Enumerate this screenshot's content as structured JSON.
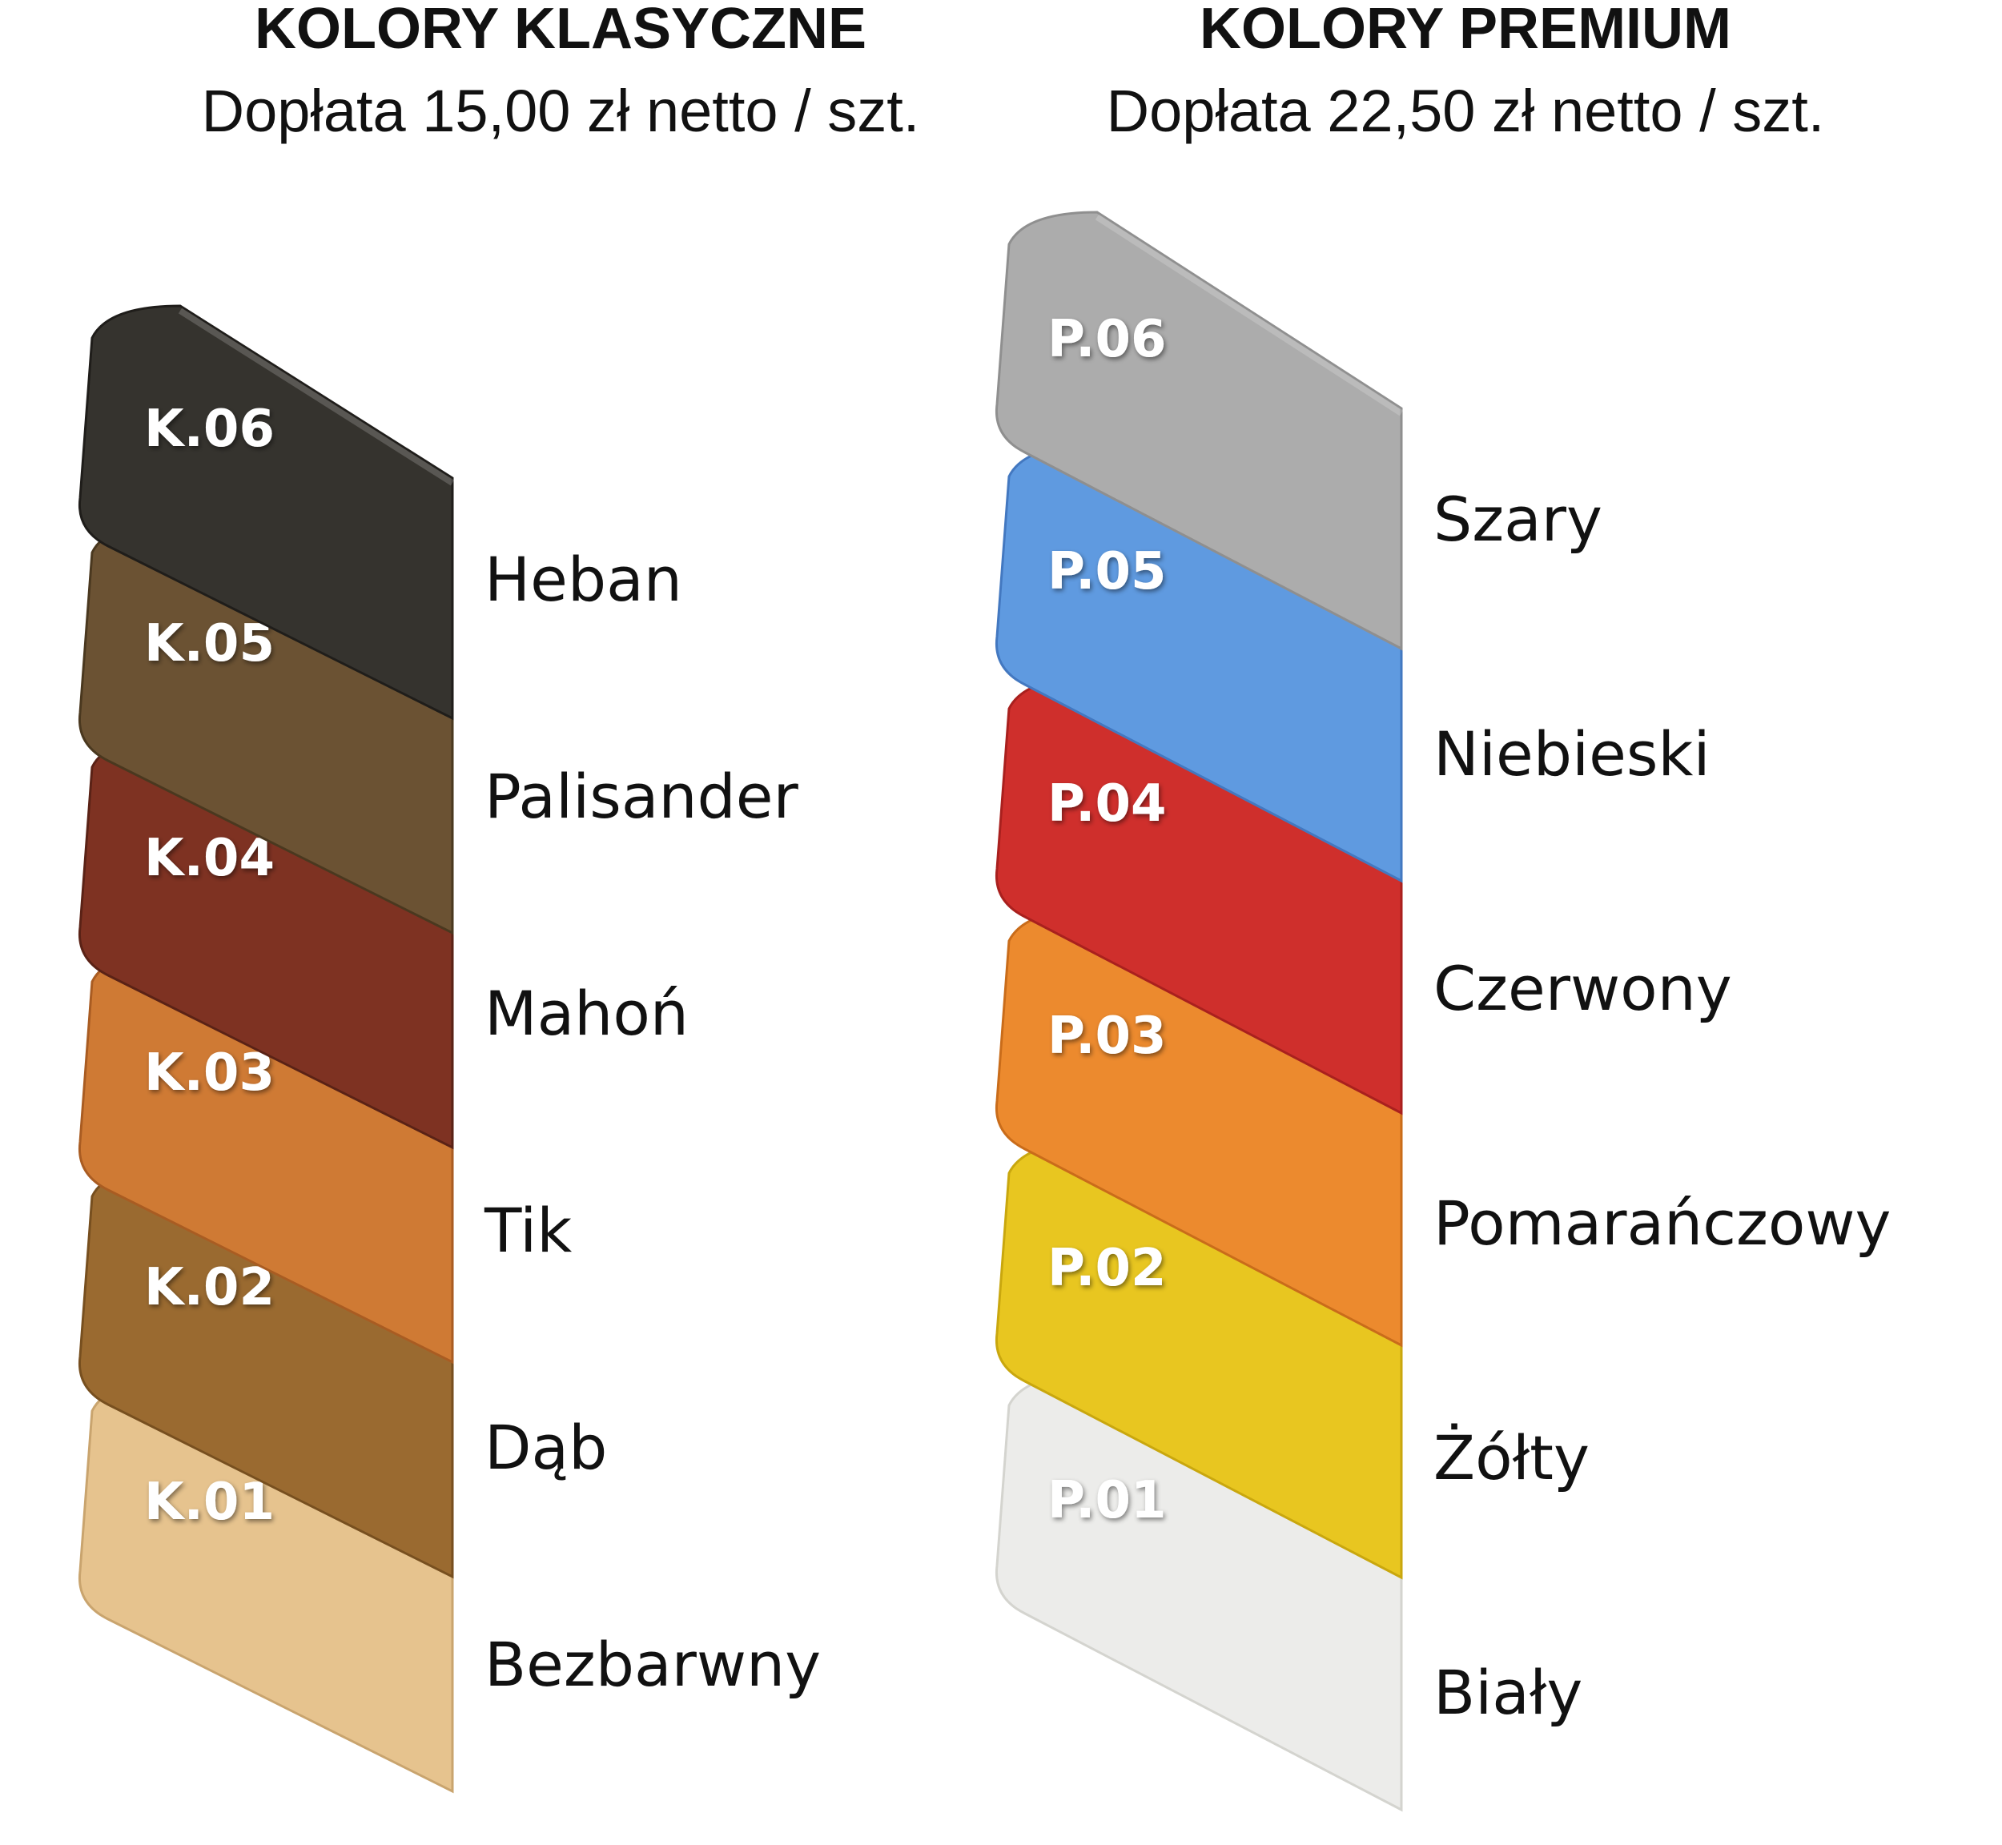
{
  "classic": {
    "title": "KOLORY KLASYCZNE",
    "subtitle": "Dopłata 15,00 zł netto / szt.",
    "items": [
      {
        "code": "K.06",
        "name": "Heban",
        "color": "#35332e",
        "edge": "#1f1d1a"
      },
      {
        "code": "K.05",
        "name": "Palisander",
        "color": "#6b5233",
        "edge": "#4a381f"
      },
      {
        "code": "K.04",
        "name": "Mahoń",
        "color": "#7e3222",
        "edge": "#5a2216"
      },
      {
        "code": "K.03",
        "name": "Tik",
        "color": "#cf7a34",
        "edge": "#a95c22"
      },
      {
        "code": "K.02",
        "name": "Dąb",
        "color": "#9a6a30",
        "edge": "#774f1f"
      },
      {
        "code": "K.01",
        "name": "Bezbarwny",
        "color": "#e6c38e",
        "edge": "#c9a46e"
      }
    ]
  },
  "premium": {
    "title": "KOLORY PREMIUM",
    "subtitle": "Dopłata 22,50 zł netto / szt.",
    "items": [
      {
        "code": "P.06",
        "name": "Szary",
        "color": "#acacac",
        "edge": "#8f8f8f"
      },
      {
        "code": "P.05",
        "name": "Niebieski",
        "color": "#5f9ae0",
        "edge": "#4378c0"
      },
      {
        "code": "P.04",
        "name": "Czerwony",
        "color": "#cf2f2c",
        "edge": "#a9201e"
      },
      {
        "code": "P.03",
        "name": "Pomarańczowy",
        "color": "#ec8a2e",
        "edge": "#c96c1a"
      },
      {
        "code": "P.02",
        "name": "Żółty",
        "color": "#e8c620",
        "edge": "#c9a70e"
      },
      {
        "code": "P.01",
        "name": "Biały",
        "color": "#ececea",
        "edge": "#d4d4cf"
      }
    ]
  }
}
